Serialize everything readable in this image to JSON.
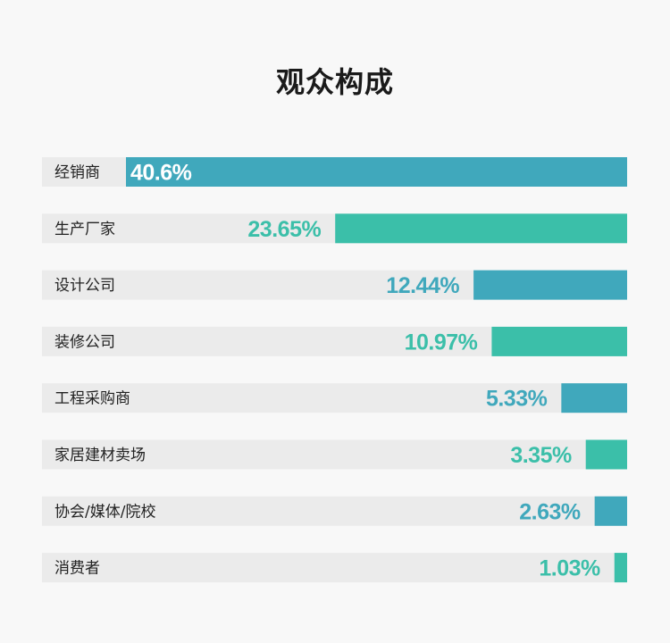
{
  "chart_data": {
    "type": "bar",
    "title": "观众构成",
    "categories": [
      "经销商",
      "生产厂家",
      "设计公司",
      "装修公司",
      "工程采购商",
      "家居建材卖场",
      "协会/媒体/院校",
      "消费者"
    ],
    "values": [
      40.6,
      23.65,
      12.44,
      10.97,
      5.33,
      3.35,
      2.63,
      1.03
    ],
    "value_labels": [
      "40.6%",
      "23.65%",
      "12.44%",
      "10.97%",
      "5.33%",
      "3.35%",
      "2.63%",
      "1.03%"
    ],
    "xlim": [
      0,
      40.6
    ],
    "orientation": "horizontal",
    "bars_aligned": "right",
    "colors": [
      "#40a8bc",
      "#3bbfa9"
    ],
    "track_color": "#ebebeb",
    "grid": false,
    "legend": "none"
  }
}
